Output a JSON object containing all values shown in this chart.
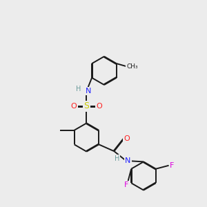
{
  "bg": "#ececec",
  "bond_color": "#1a1a1a",
  "bond_lw": 1.4,
  "dbo": 0.018,
  "atom_colors": {
    "H": "#6a9a9a",
    "N": "#2020ff",
    "O": "#ff2020",
    "S": "#cccc00",
    "F": "#dd00dd",
    "C": "#1a1a1a"
  },
  "font": 7.5,
  "r": 0.42
}
